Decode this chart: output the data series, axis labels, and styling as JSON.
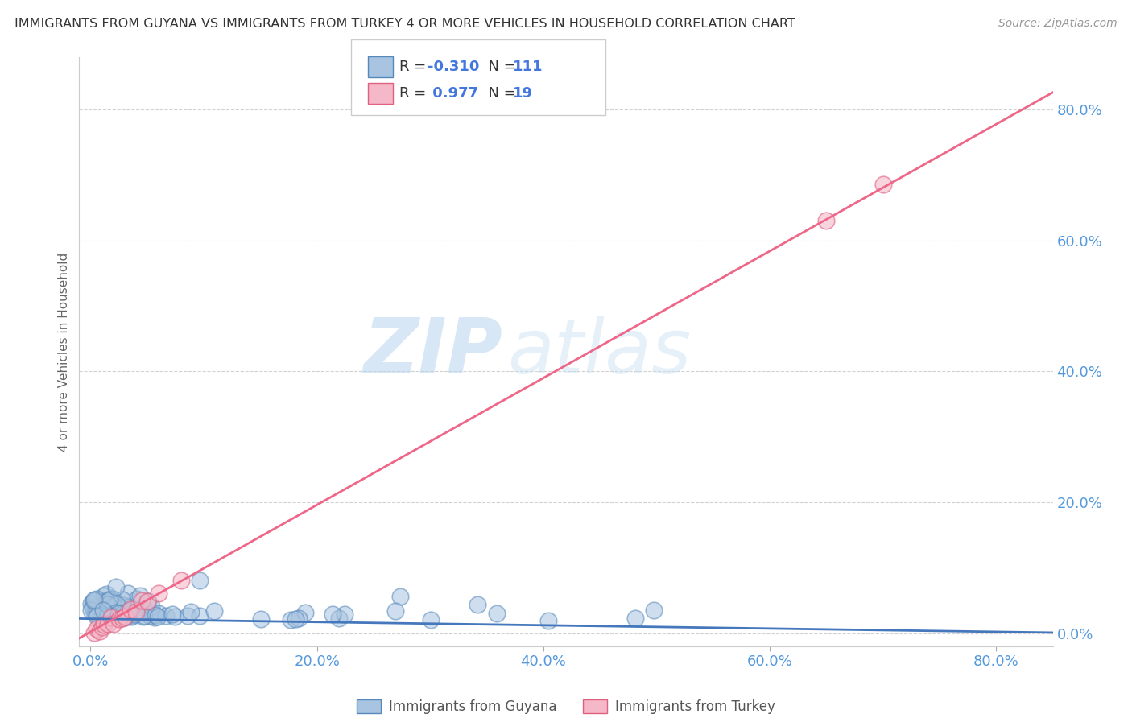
{
  "title": "IMMIGRANTS FROM GUYANA VS IMMIGRANTS FROM TURKEY 4 OR MORE VEHICLES IN HOUSEHOLD CORRELATION CHART",
  "source": "Source: ZipAtlas.com",
  "ylabel": "4 or more Vehicles in Household",
  "xlim": [
    -0.01,
    0.85
  ],
  "ylim": [
    -0.02,
    0.88
  ],
  "xticks": [
    0.0,
    0.2,
    0.4,
    0.6,
    0.8
  ],
  "yticks": [
    0.0,
    0.2,
    0.4,
    0.6,
    0.8
  ],
  "guyana_color_face": "#a8c4e0",
  "guyana_color_edge": "#5588bb",
  "turkey_color_face": "#f4b8c8",
  "turkey_color_edge": "#e06080",
  "guyana_line_color": "#4477bb",
  "turkey_line_color": "#ee6688",
  "guyana_R": -0.31,
  "guyana_N": 111,
  "turkey_R": 0.977,
  "turkey_N": 19,
  "legend_guyana": "Immigrants from Guyana",
  "legend_turkey": "Immigrants from Turkey",
  "watermark_zip": "ZIP",
  "watermark_atlas": "atlas",
  "background_color": "#ffffff",
  "grid_color": "#cccccc",
  "title_color": "#333333",
  "axis_tick_color": "#5599dd",
  "title_fontsize": 11.5,
  "tick_fontsize": 13
}
